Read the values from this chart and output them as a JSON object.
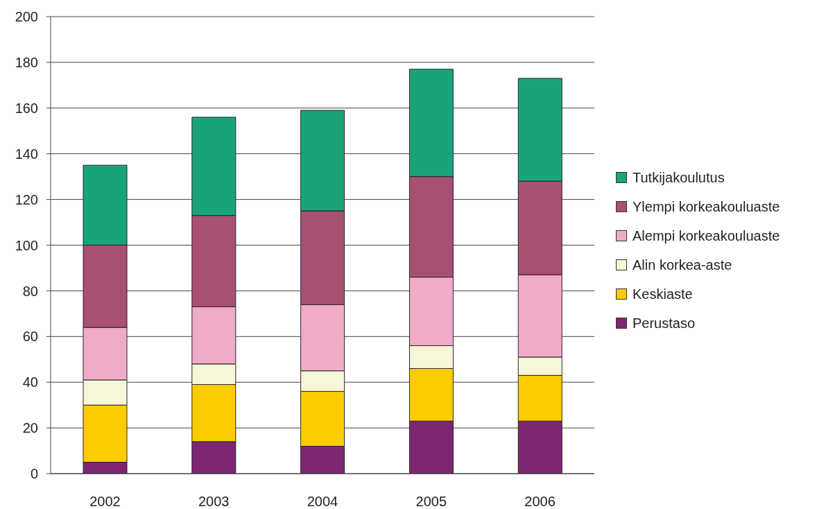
{
  "chart_data": {
    "type": "bar",
    "stacked": true,
    "categories": [
      "2002",
      "2003",
      "2004",
      "2005",
      "2006"
    ],
    "series": [
      {
        "name": "Perustaso",
        "color": "#7e2572",
        "values": [
          5,
          14,
          12,
          23,
          23
        ]
      },
      {
        "name": "Keskiaste",
        "color": "#fccc00",
        "values": [
          25,
          25,
          24,
          23,
          20
        ]
      },
      {
        "name": "Alin korkea-aste",
        "color": "#f7f6d9",
        "values": [
          11,
          9,
          9,
          10,
          8
        ]
      },
      {
        "name": "Alempi korkeakouluaste",
        "color": "#f0abc8",
        "values": [
          23,
          25,
          29,
          30,
          36
        ]
      },
      {
        "name": "Ylempi korkeakouluaste",
        "color": "#a84f74",
        "values": [
          36,
          40,
          41,
          44,
          41
        ]
      },
      {
        "name": "Tutkijakoulutus",
        "color": "#1aa37a",
        "values": [
          35,
          43,
          44,
          47,
          45
        ]
      }
    ],
    "ylim": [
      0,
      200
    ],
    "yticks": [
      0,
      20,
      40,
      60,
      80,
      100,
      120,
      140,
      160,
      180,
      200
    ],
    "grid": "y",
    "legend": "right"
  }
}
